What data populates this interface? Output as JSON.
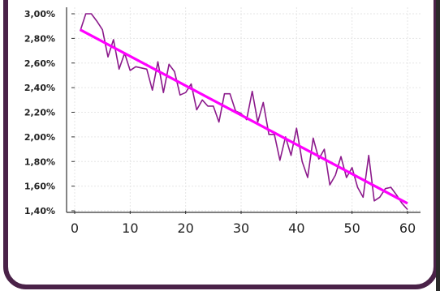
{
  "chart_data": {
    "type": "line",
    "title": "",
    "xlabel": "",
    "ylabel": "",
    "xlim": [
      0,
      60
    ],
    "ylim": [
      1.4,
      3.0
    ],
    "x_ticks": [
      "0",
      "10",
      "20",
      "30",
      "40",
      "50",
      "60"
    ],
    "y_ticks": [
      "1,40%",
      "1,60%",
      "1,80%",
      "2,00%",
      "2,20%",
      "2,40%",
      "2,60%",
      "2,80%",
      "3,00%"
    ],
    "grid": true,
    "legend": "none",
    "series": [
      {
        "color": "#8b1a8b",
        "x": [
          1,
          2,
          3,
          4,
          5,
          6,
          7,
          8,
          9,
          10,
          11,
          12,
          13,
          14,
          15,
          16,
          17,
          18,
          19,
          20,
          21,
          22,
          23,
          24,
          25,
          26,
          27,
          28,
          29,
          30,
          31,
          32,
          33,
          34,
          35,
          36,
          37,
          38,
          39,
          40,
          41,
          42,
          43,
          44,
          45,
          46,
          47,
          48,
          49,
          50,
          51,
          52,
          53,
          54,
          55,
          56,
          57,
          58,
          59,
          60
        ],
        "y": [
          2.86,
          3.0,
          3.0,
          2.94,
          2.87,
          2.65,
          2.79,
          2.55,
          2.68,
          2.54,
          2.57,
          2.56,
          2.55,
          2.38,
          2.61,
          2.36,
          2.59,
          2.53,
          2.34,
          2.36,
          2.43,
          2.22,
          2.3,
          2.25,
          2.25,
          2.12,
          2.35,
          2.35,
          2.21,
          2.19,
          2.14,
          2.37,
          2.12,
          2.28,
          2.02,
          2.02,
          1.81,
          2.0,
          1.85,
          2.07,
          1.8,
          1.67,
          1.99,
          1.82,
          1.9,
          1.61,
          1.69,
          1.84,
          1.67,
          1.75,
          1.59,
          1.51,
          1.85,
          1.48,
          1.51,
          1.58,
          1.59,
          1.53,
          1.46,
          1.41
        ]
      },
      {
        "color": "#ff00ff",
        "x": [
          1,
          60
        ],
        "y": [
          2.87,
          1.46
        ]
      }
    ]
  }
}
